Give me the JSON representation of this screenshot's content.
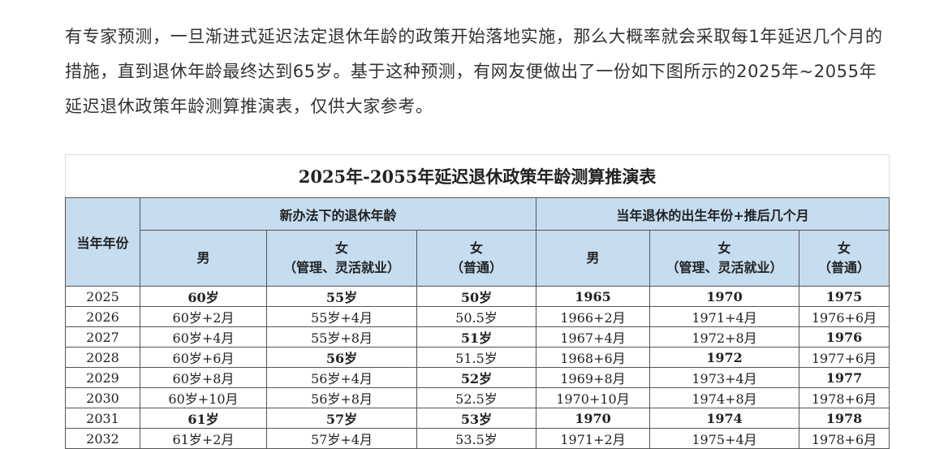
{
  "paragraph": "有专家预测，一旦渐进式延迟法定退休年龄的政策开始落地实施，那么大概率就会采取每1年延迟几个月的措施，直到退休年龄最终达到65岁。基于这种预测，有网友便做出了一份如下图所示的2025年~2055年延迟退休政策年龄测算推演表，仅供大家参考。",
  "table": {
    "title": "2025年-2055年延迟退休政策年龄测算推演表",
    "year_header": "当年年份",
    "group1": "新办法下的退休年龄",
    "group2": "当年退休的出生年份+推后几个月",
    "cols": [
      {
        "l1": "男",
        "l2": ""
      },
      {
        "l1": "女",
        "l2": "（管理、灵活就业）"
      },
      {
        "l1": "女",
        "l2": "（普通）"
      },
      {
        "l1": "男",
        "l2": ""
      },
      {
        "l1": "女",
        "l2": "（管理、灵活就业）"
      },
      {
        "l1": "女",
        "l2": "（普通）"
      }
    ],
    "header_color": "#c6dcef",
    "rows": [
      {
        "year": "2025",
        "cells": [
          "60岁",
          "55岁",
          "50岁",
          "1965",
          "1970",
          "1975"
        ],
        "bold": [
          1,
          1,
          1,
          1,
          1,
          1
        ]
      },
      {
        "year": "2026",
        "cells": [
          "60岁+2月",
          "55岁+4月",
          "50.5岁",
          "1966+2月",
          "1971+4月",
          "1976+6月"
        ],
        "bold": [
          0,
          0,
          0,
          0,
          0,
          0
        ]
      },
      {
        "year": "2027",
        "cells": [
          "60岁+4月",
          "55岁+8月",
          "51岁",
          "1967+4月",
          "1972+8月",
          "1976"
        ],
        "bold": [
          0,
          0,
          1,
          0,
          0,
          1
        ]
      },
      {
        "year": "2028",
        "cells": [
          "60岁+6月",
          "56岁",
          "51.5岁",
          "1968+6月",
          "1972",
          "1977+6月"
        ],
        "bold": [
          0,
          1,
          0,
          0,
          1,
          0
        ]
      },
      {
        "year": "2029",
        "cells": [
          "60岁+8月",
          "56岁+4月",
          "52岁",
          "1969+8月",
          "1973+4月",
          "1977"
        ],
        "bold": [
          0,
          0,
          1,
          0,
          0,
          1
        ]
      },
      {
        "year": "2030",
        "cells": [
          "60岁+10月",
          "56岁+8月",
          "52.5岁",
          "1970+10月",
          "1974+8月",
          "1978+6月"
        ],
        "bold": [
          0,
          0,
          0,
          0,
          0,
          0
        ]
      },
      {
        "year": "2031",
        "cells": [
          "61岁",
          "57岁",
          "53岁",
          "1970",
          "1974",
          "1978"
        ],
        "bold": [
          1,
          1,
          1,
          1,
          1,
          1
        ]
      },
      {
        "year": "2032",
        "cells": [
          "61岁+2月",
          "57岁+4月",
          "53.5岁",
          "1971+2月",
          "1975+4月",
          "1978+6月"
        ],
        "bold": [
          0,
          0,
          0,
          0,
          0,
          0
        ]
      }
    ]
  }
}
